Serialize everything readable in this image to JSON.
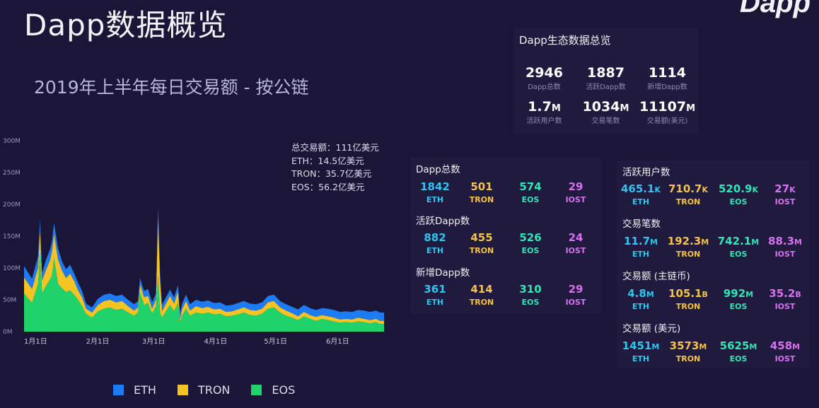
{
  "page": {
    "title": "Dapp数据概览",
    "brand": "Dapp"
  },
  "colors": {
    "eth": "#1e7cf2",
    "tron": "#f6c324",
    "eos": "#1fd36a"
  },
  "chart_data": {
    "type": "area",
    "title": "2019年上半年每日交易额 - 按公链",
    "ylabel": "",
    "xlabel": "",
    "ylim": [
      0,
      300
    ],
    "y_unit": "M",
    "y_ticks": [
      "0M",
      "50M",
      "100M",
      "150M",
      "200M",
      "250M",
      "300M"
    ],
    "x_ticks": [
      {
        "label": "1月1日",
        "day": 0
      },
      {
        "label": "2月1日",
        "day": 31
      },
      {
        "label": "3月1日",
        "day": 59
      },
      {
        "label": "4月1日",
        "day": 90
      },
      {
        "label": "5月1日",
        "day": 120
      },
      {
        "label": "6月1日",
        "day": 151
      }
    ],
    "x": [
      0,
      4,
      7,
      8,
      9,
      11,
      13,
      14,
      15,
      17,
      19,
      21,
      23,
      25,
      27,
      29,
      31,
      34,
      37,
      40,
      43,
      46,
      49,
      52,
      55,
      57,
      58,
      60,
      62,
      64,
      66,
      67,
      68,
      69,
      71,
      73,
      75,
      77,
      78,
      79,
      81,
      83,
      86,
      89,
      92,
      95,
      98,
      101,
      104,
      107,
      110,
      113,
      116,
      119,
      122,
      125,
      128,
      131,
      134,
      137,
      140,
      143,
      146,
      149,
      152,
      155,
      158,
      161,
      164,
      167,
      170,
      173,
      176,
      178,
      180
    ],
    "series": [
      {
        "name": "EOS",
        "values": [
          60,
          45,
          75,
          125,
          60,
          72,
          82,
          88,
          115,
          75,
          68,
          62,
          65,
          58,
          50,
          40,
          28,
          22,
          32,
          36,
          38,
          34,
          36,
          30,
          25,
          30,
          62,
          42,
          45,
          28,
          40,
          88,
          30,
          22,
          32,
          42,
          32,
          45,
          14,
          25,
          36,
          25,
          30,
          28,
          30,
          27,
          28,
          24,
          25,
          27,
          30,
          26,
          25,
          28,
          36,
          38,
          30,
          25,
          22,
          18,
          24,
          20,
          17,
          20,
          18,
          16,
          14,
          15,
          14,
          16,
          15,
          13,
          15,
          12,
          12
        ]
      },
      {
        "name": "TRON",
        "values": [
          25,
          22,
          25,
          32,
          20,
          25,
          30,
          38,
          38,
          38,
          28,
          22,
          26,
          22,
          15,
          14,
          8,
          8,
          10,
          12,
          12,
          12,
          12,
          10,
          8,
          8,
          12,
          12,
          11,
          8,
          10,
          95,
          50,
          10,
          12,
          14,
          12,
          18,
          5,
          10,
          12,
          8,
          10,
          9,
          9,
          8,
          8,
          7,
          7,
          8,
          8,
          8,
          8,
          8,
          10,
          10,
          8,
          8,
          7,
          6,
          7,
          6,
          6,
          6,
          6,
          6,
          5,
          5,
          5,
          6,
          5,
          5,
          5,
          5,
          5
        ]
      },
      {
        "name": "ETH",
        "values": [
          18,
          16,
          18,
          18,
          12,
          16,
          17,
          17,
          18,
          18,
          14,
          14,
          14,
          12,
          12,
          10,
          8,
          8,
          10,
          10,
          10,
          10,
          10,
          10,
          10,
          10,
          10,
          10,
          11,
          10,
          10,
          12,
          12,
          10,
          10,
          10,
          10,
          10,
          9,
          9,
          10,
          10,
          10,
          10,
          10,
          10,
          10,
          10,
          10,
          10,
          10,
          10,
          10,
          10,
          10,
          10,
          10,
          10,
          10,
          11,
          11,
          11,
          11,
          11,
          12,
          12,
          12,
          12,
          12,
          12,
          13,
          13,
          13,
          13,
          13
        ]
      }
    ],
    "annotations": [
      "总交易额：111亿美元",
      "ETH：14.5亿美元",
      "TRON：35.7亿美元",
      "EOS：56.2亿美元"
    ],
    "legend": [
      "ETH",
      "TRON",
      "EOS"
    ],
    "legend_position": "bottom",
    "grid": false
  },
  "overview": {
    "title": "Dapp生态数据总览",
    "rows": [
      [
        {
          "value": "2946",
          "unit": "",
          "label": "Dapp总数"
        },
        {
          "value": "1887",
          "unit": "",
          "label": "活跃Dapp数"
        },
        {
          "value": "1114",
          "unit": "",
          "label": "新增Dapp数"
        }
      ],
      [
        {
          "value": "1.7",
          "unit": "M",
          "label": "活跃用户数"
        },
        {
          "value": "1034",
          "unit": "M",
          "label": "交易笔数"
        },
        {
          "value": "11107",
          "unit": "M",
          "label": "交易额(美元)"
        }
      ]
    ]
  },
  "stats_left": [
    {
      "title": "Dapp总数",
      "items": [
        {
          "value": "1842",
          "unit": "",
          "chain": "ETH"
        },
        {
          "value": "501",
          "unit": "",
          "chain": "TRON"
        },
        {
          "value": "574",
          "unit": "",
          "chain": "EOS"
        },
        {
          "value": "29",
          "unit": "",
          "chain": "IOST"
        }
      ]
    },
    {
      "title": "活跃Dapp数",
      "items": [
        {
          "value": "882",
          "unit": "",
          "chain": "ETH"
        },
        {
          "value": "455",
          "unit": "",
          "chain": "TRON"
        },
        {
          "value": "526",
          "unit": "",
          "chain": "EOS"
        },
        {
          "value": "24",
          "unit": "",
          "chain": "IOST"
        }
      ]
    },
    {
      "title": "新增Dapp数",
      "items": [
        {
          "value": "361",
          "unit": "",
          "chain": "ETH"
        },
        {
          "value": "414",
          "unit": "",
          "chain": "TRON"
        },
        {
          "value": "310",
          "unit": "",
          "chain": "EOS"
        },
        {
          "value": "29",
          "unit": "",
          "chain": "IOST"
        }
      ]
    }
  ],
  "stats_right": [
    {
      "title": "活跃用户数",
      "items": [
        {
          "value": "465.1",
          "unit": "K",
          "chain": "ETH"
        },
        {
          "value": "710.7",
          "unit": "K",
          "chain": "TRON"
        },
        {
          "value": "520.9",
          "unit": "K",
          "chain": "EOS"
        },
        {
          "value": "27",
          "unit": "K",
          "chain": "IOST"
        }
      ]
    },
    {
      "title": "交易笔数",
      "items": [
        {
          "value": "11.7",
          "unit": "M",
          "chain": "ETH"
        },
        {
          "value": "192.3",
          "unit": "M",
          "chain": "TRON"
        },
        {
          "value": "742.1",
          "unit": "M",
          "chain": "EOS"
        },
        {
          "value": "88.3",
          "unit": "M",
          "chain": "IOST"
        }
      ]
    },
    {
      "title": "交易额 (主链币)",
      "items": [
        {
          "value": "4.8",
          "unit": "M",
          "chain": "ETH"
        },
        {
          "value": "105.1",
          "unit": "B",
          "chain": "TRON"
        },
        {
          "value": "992",
          "unit": "M",
          "chain": "EOS"
        },
        {
          "value": "35.2",
          "unit": "B",
          "chain": "IOST"
        }
      ]
    },
    {
      "title": "交易额 (美元)",
      "items": [
        {
          "value": "1451",
          "unit": "M",
          "chain": "ETH"
        },
        {
          "value": "3573",
          "unit": "M",
          "chain": "TRON"
        },
        {
          "value": "5625",
          "unit": "M",
          "chain": "EOS"
        },
        {
          "value": "458",
          "unit": "M",
          "chain": "IOST"
        }
      ]
    }
  ]
}
